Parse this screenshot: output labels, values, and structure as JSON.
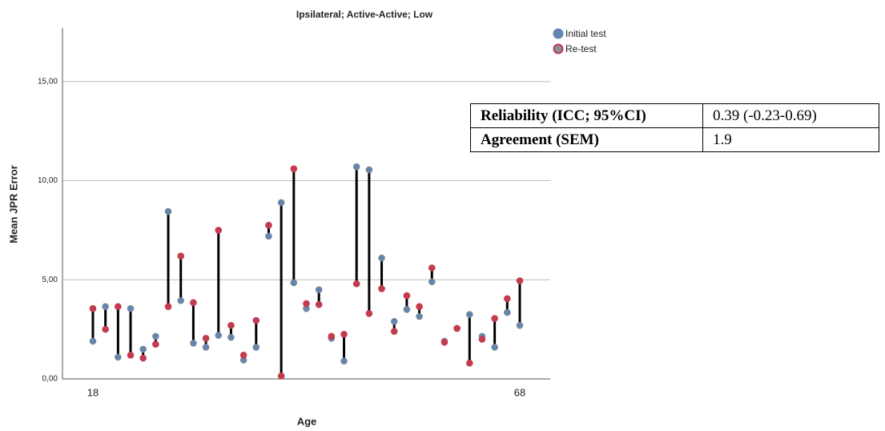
{
  "chart_data": {
    "type": "dropline",
    "title": "Ipsilateral; Active-Active; Low",
    "x_label": "Age",
    "y_label": "Mean JPR Error",
    "categories": [
      "18",
      null,
      null,
      null,
      null,
      null,
      null,
      null,
      null,
      null,
      null,
      null,
      null,
      null,
      null,
      null,
      null,
      null,
      null,
      null,
      null,
      null,
      null,
      null,
      null,
      null,
      null,
      null,
      null,
      null,
      null,
      null,
      null,
      null,
      "68"
    ],
    "series": [
      {
        "name": "Initial test",
        "color": "#6286b0",
        "values": [
          1.9,
          3.65,
          1.1,
          3.55,
          1.5,
          2.15,
          8.45,
          3.95,
          1.8,
          1.6,
          2.2,
          2.1,
          0.95,
          1.6,
          7.2,
          8.9,
          4.85,
          3.55,
          4.5,
          2.05,
          0.9,
          10.7,
          10.55,
          6.1,
          2.9,
          3.5,
          3.15,
          4.9,
          1.9,
          2.55,
          3.25,
          2.15,
          1.6,
          3.35,
          2.7
        ]
      },
      {
        "name": "Re-test",
        "color": "#c33b4e",
        "values": [
          3.55,
          2.5,
          3.65,
          1.2,
          1.05,
          1.75,
          3.65,
          6.2,
          3.85,
          2.05,
          7.5,
          2.7,
          1.2,
          2.95,
          7.75,
          0.15,
          10.6,
          3.8,
          3.75,
          2.15,
          2.25,
          4.8,
          3.3,
          4.55,
          2.4,
          4.2,
          3.65,
          5.6,
          1.85,
          2.55,
          0.8,
          2.0,
          3.05,
          4.05,
          4.95
        ]
      }
    ],
    "ylim": [
      0,
      17.7
    ],
    "yticks": [
      {
        "value": 0,
        "label": "0,00"
      },
      {
        "value": 5,
        "label": "5,00"
      },
      {
        "value": 10,
        "label": "10,00"
      },
      {
        "value": 15,
        "label": "15,00"
      }
    ],
    "grid": true,
    "legend": "top-right",
    "annotation_table": {
      "rows": [
        [
          "Reliability (ICC; 95%CI)",
          "0.39 (-0.23-0.69)"
        ],
        [
          "Agreement (SEM)",
          "1.9"
        ]
      ]
    }
  }
}
